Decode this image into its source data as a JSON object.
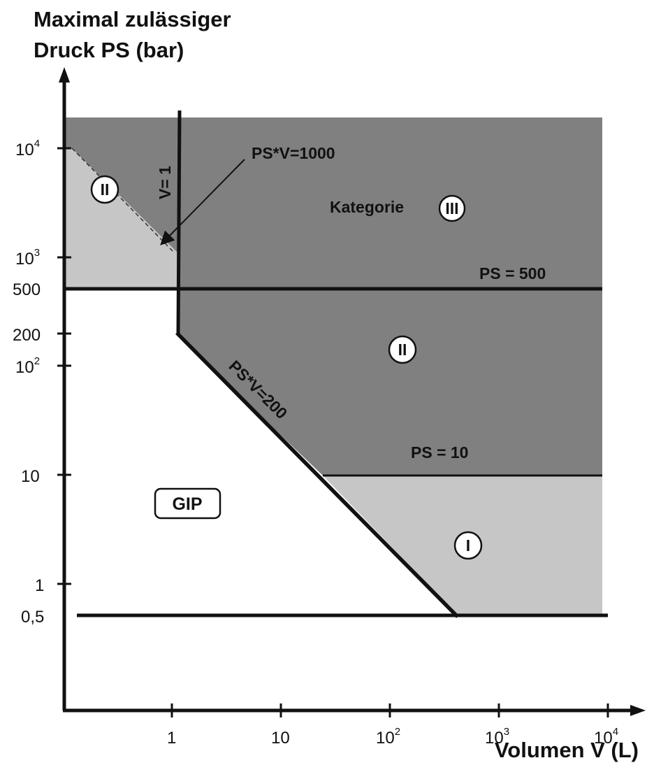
{
  "y_title_line1": "Maximal zulässiger",
  "y_title_line2": "Druck PS (bar)",
  "x_title": "Volumen V (L)",
  "y_ticks": [
    {
      "label": "10",
      "sup": "4"
    },
    {
      "label": "10",
      "sup": "3"
    },
    {
      "label": "500",
      "sup": ""
    },
    {
      "label": "200",
      "sup": ""
    },
    {
      "label": "10",
      "sup": "2"
    },
    {
      "label": "10",
      "sup": ""
    },
    {
      "label": "1",
      "sup": ""
    },
    {
      "label": "0,5",
      "sup": ""
    }
  ],
  "x_ticks": [
    {
      "label": "1",
      "sup": ""
    },
    {
      "label": "10",
      "sup": ""
    },
    {
      "label": "10",
      "sup": "2"
    },
    {
      "label": "10",
      "sup": "3"
    },
    {
      "label": "10",
      "sup": "4"
    }
  ],
  "labels": {
    "ps_v_1000": "PS*V=1000",
    "v_1": "V= 1",
    "kategorie": "Kategorie",
    "ps_500": "PS = 500",
    "ps_v_200": "PS*V=200",
    "ps_10": "PS = 10",
    "gip": "GIP"
  },
  "regions": [
    {
      "id": "II-small",
      "roman": "II"
    },
    {
      "id": "III",
      "roman": "III"
    },
    {
      "id": "II",
      "roman": "II"
    },
    {
      "id": "I",
      "roman": "I"
    }
  ],
  "colors": {
    "dark_region": "#808080",
    "light_region": "#c6c6c6",
    "lines": "#111111",
    "background": "#ffffff"
  }
}
